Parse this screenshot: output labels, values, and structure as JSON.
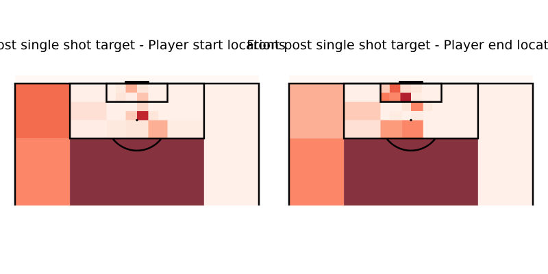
{
  "chart_data": [
    {
      "type": "heatmap",
      "title": "post single shot target - Player start locations",
      "cmap": [
        "#fff5f0",
        "#fdd4c2",
        "#fca689",
        "#fb7a5a",
        "#e44a33",
        "#b81c2c",
        "#87323f"
      ],
      "grid_on": false,
      "regions": [
        {
          "label": "left-wide-box-height",
          "x": [
            0,
            18
          ],
          "y": [
            102,
            120
          ],
          "value": 0.55
        },
        {
          "label": "left-wide-deep",
          "x": [
            0,
            18
          ],
          "y": [
            80,
            102
          ],
          "value": 0.45
        },
        {
          "label": "central-deep",
          "x": [
            18,
            62
          ],
          "y": [
            80,
            102
          ],
          "value": 1.0
        },
        {
          "label": "right-wide",
          "x": [
            62,
            80
          ],
          "y": [
            80,
            120
          ],
          "value": 0.02
        },
        {
          "label": "box-left-upper",
          "x": [
            18,
            30
          ],
          "y": [
            114,
            120
          ],
          "value": 0.03
        },
        {
          "label": "box-left-mid",
          "x": [
            18,
            30
          ],
          "y": [
            108,
            114
          ],
          "value": 0.1
        },
        {
          "label": "box-left-lower",
          "x": [
            18,
            30
          ],
          "y": [
            102,
            108
          ],
          "value": 0.04
        },
        {
          "label": "box-right-lower",
          "x": [
            50,
            62
          ],
          "y": [
            102,
            108
          ],
          "value": 0.05
        },
        {
          "label": "box-right-upper",
          "x": [
            50,
            62
          ],
          "y": [
            108,
            120
          ],
          "value": 0.02
        },
        {
          "label": "box-central-lower-a",
          "x": [
            30,
            36.3
          ],
          "y": [
            102,
            108
          ],
          "value": 0.06
        },
        {
          "label": "box-central-lower-b",
          "x": [
            36.3,
            43.7
          ],
          "y": [
            102,
            108
          ],
          "value": 0.08
        },
        {
          "label": "box-central-lower-c",
          "x": [
            43.7,
            50
          ],
          "y": [
            102,
            108
          ],
          "value": 0.3
        },
        {
          "label": "box-central-mid-a",
          "x": [
            30,
            36.3
          ],
          "y": [
            108,
            114
          ],
          "value": 0.03
        },
        {
          "label": "six-a1",
          "x": [
            33,
            36.3
          ],
          "y": [
            114,
            117
          ],
          "value": 0.08
        },
        {
          "label": "six-a2",
          "x": [
            36.3,
            40
          ],
          "y": [
            114,
            117
          ],
          "value": 0.04
        },
        {
          "label": "six-a3",
          "x": [
            40,
            43.7
          ],
          "y": [
            114,
            117
          ],
          "value": 0.22
        },
        {
          "label": "six-b1",
          "x": [
            33,
            36.3
          ],
          "y": [
            117,
            120
          ],
          "value": 0.06
        },
        {
          "label": "six-b2",
          "x": [
            36.3,
            40
          ],
          "y": [
            117,
            120
          ],
          "value": 0.3
        },
        {
          "label": "six-b3",
          "x": [
            40,
            43.7
          ],
          "y": [
            117,
            120
          ],
          "value": 0.08
        },
        {
          "label": "box-center-a",
          "x": [
            36.3,
            40
          ],
          "y": [
            108,
            111
          ],
          "value": 0.2
        },
        {
          "label": "box-center-b",
          "x": [
            36.3,
            40
          ],
          "y": [
            111,
            114
          ],
          "value": 0.02
        },
        {
          "label": "box-center-c",
          "x": [
            40,
            43.7
          ],
          "y": [
            108,
            111
          ],
          "value": 0.8
        },
        {
          "label": "box-center-d",
          "x": [
            40,
            43.7
          ],
          "y": [
            111,
            114
          ],
          "value": 0.15
        },
        {
          "label": "box-center-e",
          "x": [
            43.7,
            47
          ],
          "y": [
            108,
            111
          ],
          "value": 0.08
        }
      ]
    },
    {
      "type": "heatmap",
      "title": "Front post single shot target - Player end locations",
      "cmap": [
        "#fff5f0",
        "#fdd4c2",
        "#fca689",
        "#fb7a5a",
        "#e44a33",
        "#b81c2c",
        "#87323f"
      ],
      "grid_on": false,
      "regions": [
        {
          "label": "left-wide-box-height",
          "x": [
            0,
            18
          ],
          "y": [
            102,
            120
          ],
          "value": 0.3
        },
        {
          "label": "left-wide-deep",
          "x": [
            0,
            18
          ],
          "y": [
            80,
            102
          ],
          "value": 0.45
        },
        {
          "label": "central-deep",
          "x": [
            18,
            62
          ],
          "y": [
            80,
            102
          ],
          "value": 1.0
        },
        {
          "label": "right-wide",
          "x": [
            62,
            80
          ],
          "y": [
            80,
            120
          ],
          "value": 0.02
        },
        {
          "label": "box-left-upper",
          "x": [
            18,
            30
          ],
          "y": [
            114,
            120
          ],
          "value": 0.03
        },
        {
          "label": "box-left-mid",
          "x": [
            18,
            30
          ],
          "y": [
            108,
            114
          ],
          "value": 0.2
        },
        {
          "label": "box-left-lower",
          "x": [
            18,
            30
          ],
          "y": [
            102,
            108
          ],
          "value": 0.1
        },
        {
          "label": "box-right-lower",
          "x": [
            44,
            62
          ],
          "y": [
            102,
            108
          ],
          "value": 0.02
        },
        {
          "label": "box-right-upper",
          "x": [
            50,
            62
          ],
          "y": [
            108,
            120
          ],
          "value": 0.02
        },
        {
          "label": "box-central-lower-a",
          "x": [
            30,
            37
          ],
          "y": [
            102,
            108
          ],
          "value": 0.38
        },
        {
          "label": "box-central-lower-b",
          "x": [
            37,
            44
          ],
          "y": [
            102,
            108
          ],
          "value": 0.45
        },
        {
          "label": "box-central-mid-a",
          "x": [
            33,
            37
          ],
          "y": [
            108,
            111
          ],
          "value": 0.05
        },
        {
          "label": "six-a1",
          "x": [
            30,
            33
          ],
          "y": [
            114,
            117
          ],
          "value": 0.5
        },
        {
          "label": "six-a2",
          "x": [
            33,
            36.5
          ],
          "y": [
            114,
            117
          ],
          "value": 0.45
        },
        {
          "label": "six-a3",
          "x": [
            36.5,
            40
          ],
          "y": [
            114,
            117
          ],
          "value": 0.85
        },
        {
          "label": "six-a4",
          "x": [
            40,
            43.5
          ],
          "y": [
            114,
            117
          ],
          "value": 0.05
        },
        {
          "label": "six-b1",
          "x": [
            30,
            33
          ],
          "y": [
            117,
            120
          ],
          "value": 0.2
        },
        {
          "label": "six-b2",
          "x": [
            33,
            36.5
          ],
          "y": [
            117,
            120
          ],
          "value": 0.6
        },
        {
          "label": "six-b3",
          "x": [
            36.5,
            40
          ],
          "y": [
            117,
            120
          ],
          "value": 0.12
        },
        {
          "label": "six-b4",
          "x": [
            40,
            43.5
          ],
          "y": [
            117,
            120
          ],
          "value": 0.08
        },
        {
          "label": "box-center-a",
          "x": [
            37,
            40
          ],
          "y": [
            111,
            114
          ],
          "value": 0.08
        },
        {
          "label": "box-center-b",
          "x": [
            40,
            44
          ],
          "y": [
            111,
            114
          ],
          "value": 0.45
        },
        {
          "label": "box-center-c",
          "x": [
            40,
            44
          ],
          "y": [
            108,
            111
          ],
          "value": 0.05
        },
        {
          "label": "box-center-d",
          "x": [
            44,
            47
          ],
          "y": [
            111,
            114
          ],
          "value": 0.06
        }
      ]
    }
  ]
}
